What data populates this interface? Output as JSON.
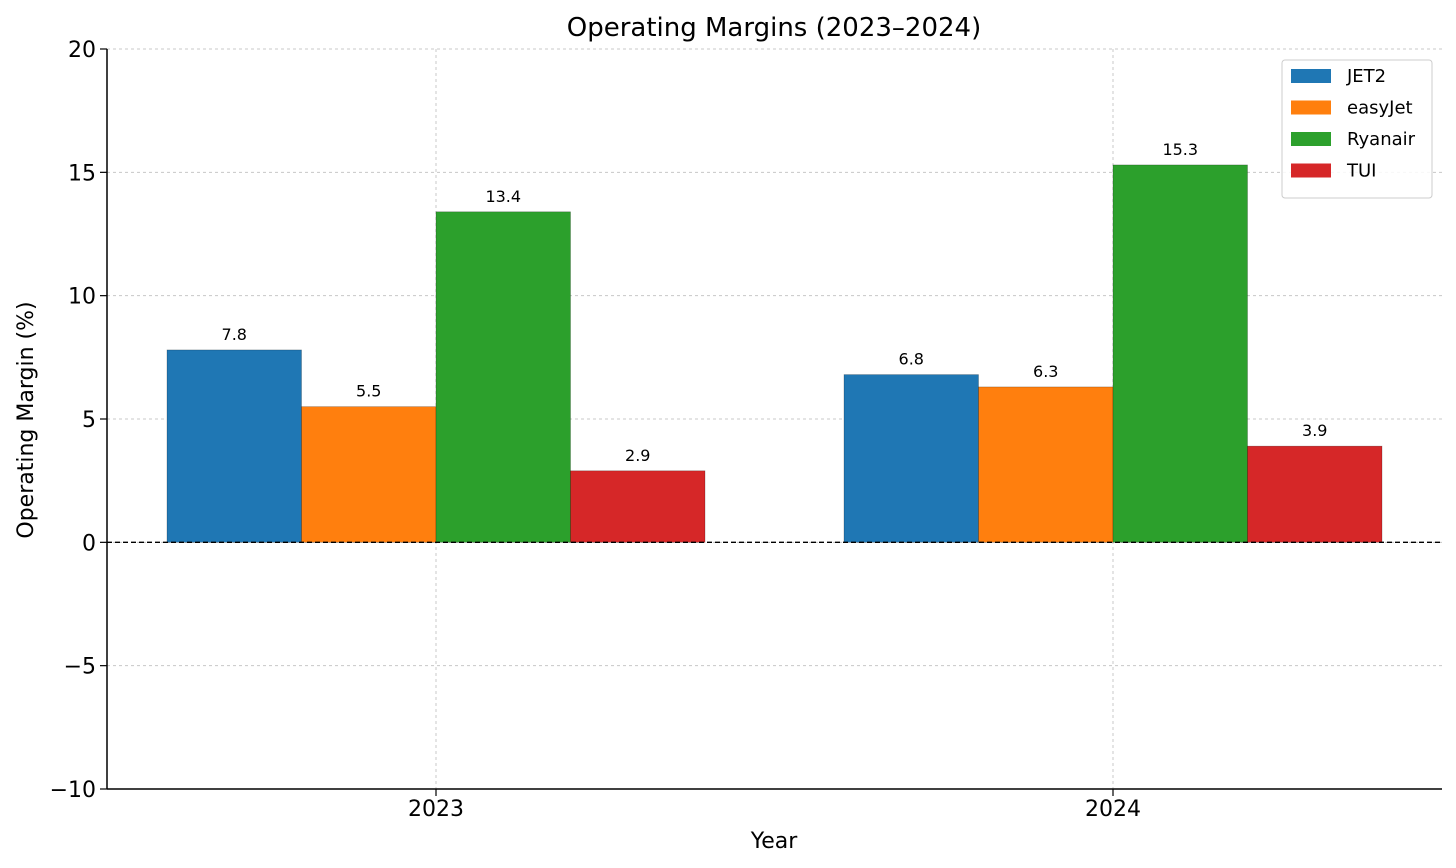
{
  "chart_data": {
    "type": "bar",
    "title": "Operating Margins (2023–2024)",
    "xlabel": "Year",
    "ylabel": "Operating Margin (%)",
    "categories": [
      "2023",
      "2024"
    ],
    "series": [
      {
        "name": "JET2",
        "values": [
          7.8,
          6.8
        ],
        "color": "#1f77b4"
      },
      {
        "name": "easyJet",
        "values": [
          5.5,
          6.3
        ],
        "color": "#ff7f0e"
      },
      {
        "name": "Ryanair",
        "values": [
          13.4,
          15.3
        ],
        "color": "#2ca02c"
      },
      {
        "name": "TUI",
        "values": [
          2.9,
          3.9
        ],
        "color": "#d62728"
      }
    ],
    "ylim": [
      -10,
      20
    ],
    "yticks": [
      -10,
      -5,
      0,
      5,
      10,
      15,
      20
    ],
    "ytick_labels": [
      "−10",
      "−5",
      "0",
      "5",
      "10",
      "15",
      "20"
    ],
    "grid": true,
    "zero_line": "dashed",
    "legend_position": "top-right"
  }
}
